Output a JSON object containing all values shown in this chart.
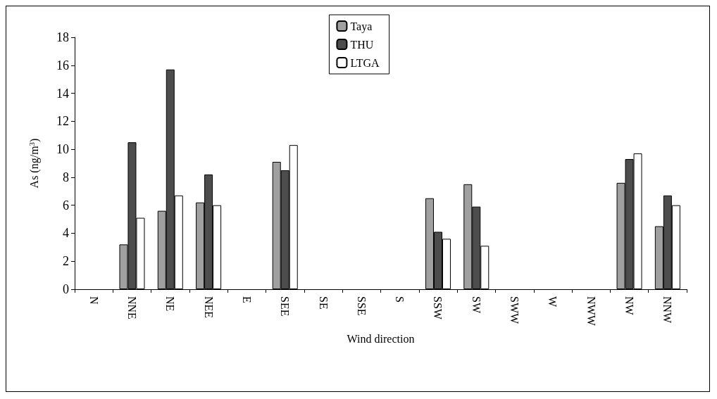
{
  "chart_data": {
    "type": "bar",
    "xlabel": "Wind direction",
    "ylabel": "As (ng/m$^{3}$)",
    "categories": [
      "N",
      "NNE",
      "NE",
      "NEE",
      "E",
      "SEE",
      "SE",
      "SSE",
      "S",
      "SSW",
      "SW",
      "SWW",
      "W",
      "NWW",
      "NW",
      "NNW"
    ],
    "series": [
      {
        "name": "Taya",
        "color": "#a0a0a0",
        "values": [
          null,
          3.2,
          5.6,
          6.2,
          null,
          9.1,
          null,
          null,
          null,
          6.5,
          7.5,
          null,
          null,
          null,
          7.6,
          4.5
        ]
      },
      {
        "name": "THU",
        "color": "#4d4d4d",
        "values": [
          null,
          10.5,
          15.7,
          8.2,
          null,
          8.5,
          null,
          null,
          null,
          4.1,
          5.9,
          null,
          null,
          null,
          9.3,
          6.7
        ]
      },
      {
        "name": "LTGA",
        "color": "#ffffff",
        "values": [
          null,
          5.1,
          6.7,
          6.0,
          null,
          10.3,
          null,
          null,
          null,
          3.6,
          3.1,
          null,
          null,
          null,
          9.7,
          6.0
        ]
      }
    ],
    "ylim": [
      0,
      18
    ],
    "yticks": [
      0,
      2,
      4,
      6,
      8,
      10,
      12,
      14,
      16,
      18
    ],
    "grid": false,
    "legend": "top"
  }
}
